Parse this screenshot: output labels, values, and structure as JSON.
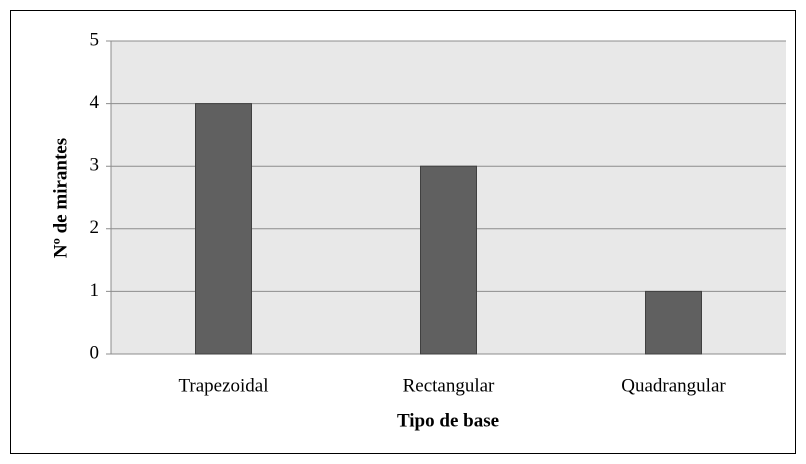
{
  "chart_data": {
    "type": "bar",
    "categories": [
      "Trapezoidal",
      "Rectangular",
      "Quadrangular"
    ],
    "values": [
      4,
      3,
      1
    ],
    "color": "#606060",
    "ylim": [
      0,
      5
    ],
    "yticks": [
      0,
      1,
      2,
      3,
      4,
      5
    ],
    "grid": true,
    "xlabel": "Tipo de base",
    "ylabel": "Nº de mirantes"
  }
}
